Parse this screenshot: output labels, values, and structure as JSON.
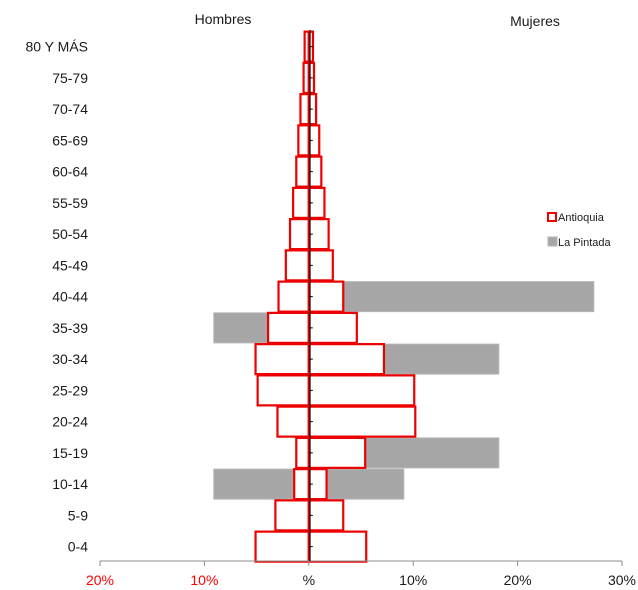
{
  "chart_data": {
    "type": "bar",
    "orientation": "horizontal",
    "layout": "population-pyramid",
    "side_labels": {
      "left": "Hombres",
      "right": "Mujeres"
    },
    "categories": [
      "80 Y MÁS",
      "75-79",
      "70-74",
      "65-69",
      "60-64",
      "55-59",
      "50-54",
      "45-49",
      "40-44",
      "35-39",
      "30-34",
      "25-29",
      "20-24",
      "15-19",
      "10-14",
      "5-9",
      "0-4"
    ],
    "x_ticks": [
      {
        "value": -20,
        "label": "20%",
        "color": "#ff0000"
      },
      {
        "value": -10,
        "label": "10%",
        "color": "#ff0000"
      },
      {
        "value": 0,
        "label": "%",
        "color": "#1a1a1a"
      },
      {
        "value": 10,
        "label": "10%",
        "color": "#1a1a1a"
      },
      {
        "value": 20,
        "label": "20%",
        "color": "#1a1a1a"
      },
      {
        "value": 30,
        "label": "30%",
        "color": "#1a1a1a"
      }
    ],
    "xlim": [
      -20,
      30
    ],
    "series": [
      {
        "name": "La Pintada",
        "style": "filled",
        "fill": "#a6a6a6",
        "stroke": "#b5b5b5",
        "male": [
          0,
          0,
          0,
          0,
          0,
          0,
          0,
          0,
          0,
          9.1,
          0,
          0,
          0,
          0,
          9.1,
          0,
          0
        ],
        "female": [
          0,
          0,
          0,
          0,
          0,
          0,
          0,
          0,
          27.3,
          0,
          18.2,
          0,
          9.1,
          18.2,
          9.1,
          0,
          0
        ]
      },
      {
        "name": "Antioquia",
        "style": "outline",
        "fill": "#ffffff",
        "stroke": "#ee0000",
        "male": [
          0.4,
          0.5,
          0.8,
          1.0,
          1.2,
          1.5,
          1.8,
          2.2,
          2.9,
          3.9,
          5.1,
          4.9,
          3.0,
          1.2,
          1.4,
          3.2,
          5.1
        ],
        "female": [
          0.4,
          0.5,
          0.7,
          1.0,
          1.2,
          1.5,
          1.9,
          2.3,
          3.3,
          4.6,
          7.2,
          10.1,
          10.2,
          5.4,
          1.7,
          3.3,
          5.5
        ]
      }
    ],
    "legend": {
      "position": "right",
      "entries": [
        "Antioquia",
        "La Pintada"
      ]
    },
    "grid": false
  }
}
